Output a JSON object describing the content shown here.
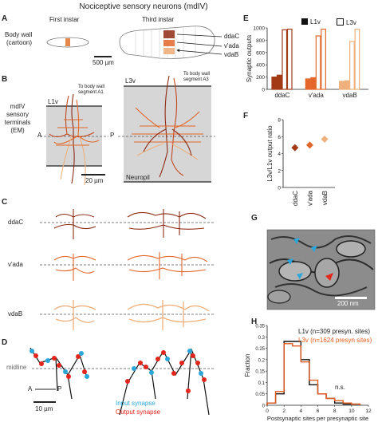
{
  "title": "Nociceptive sensory neurons (mdIV)",
  "panelA": {
    "label": "A",
    "first_instar": "First instar",
    "third_instar": "Third instar",
    "row_label_1": "Body wall",
    "row_label_2": "(cartoon)",
    "scale": "500 µm",
    "neuron_labels": [
      "ddaC",
      "v'ada",
      "vdaB"
    ]
  },
  "panelB": {
    "label": "B",
    "row_label_lines": [
      "mdIV",
      "sensory",
      "terminals",
      "(EM)"
    ],
    "l1v": "L1v",
    "l3v": "L3v",
    "to_bw_a1_1": "To body wall",
    "to_bw_a1_2": "segment A1",
    "to_bw_a3_1": "To body wall",
    "to_bw_a3_2": "segment A3",
    "axis_a": "A",
    "axis_p": "P",
    "scale": "20 µm",
    "neuropil": "Neuropil"
  },
  "panelC": {
    "label": "C",
    "rows": [
      "ddaC",
      "v'ada",
      "vdaB"
    ]
  },
  "panelD": {
    "label": "D",
    "midline": "midline",
    "axis_a": "A",
    "axis_p": "P",
    "scale": "10 µm",
    "input_synapse": "Input synapse",
    "output_synapse": "Output synapse"
  },
  "panelE": {
    "label": "E",
    "legend_l1v": "L1v",
    "legend_l3v": "L3v",
    "chart_data": {
      "type": "bar",
      "ylabel": "Synaptic outputs",
      "ylim": [
        0,
        1000
      ],
      "yticks": [
        0,
        200,
        400,
        600,
        800,
        1000
      ],
      "categories": [
        "ddaC",
        "v'ada",
        "vdaB"
      ],
      "series": [
        {
          "name": "L1v",
          "values": [
            [
              200,
              230
            ],
            [
              170,
              190
            ],
            [
              130,
              140
            ]
          ]
        },
        {
          "name": "L3v",
          "values": [
            [
              970,
              980
            ],
            [
              870,
              980
            ],
            [
              780,
              980
            ]
          ]
        }
      ],
      "colors": {
        "ddaC": "#a23a16",
        "v'ada": "#e3672a",
        "vdaB": "#eeb07d"
      }
    }
  },
  "panelF": {
    "label": "F",
    "chart_data": {
      "type": "scatter",
      "ylabel": "L3v/L1v output ratio",
      "ylim": [
        0,
        8
      ],
      "yticks": [
        0,
        2,
        4,
        6,
        8
      ],
      "categories": [
        "ddaC",
        "v'ada",
        "vdaB"
      ],
      "values": [
        4.7,
        5.0,
        5.7
      ],
      "colors": [
        "#a23a16",
        "#e3672a",
        "#eeb07d"
      ]
    }
  },
  "panelG": {
    "label": "G",
    "scale": "200 nm"
  },
  "panelH": {
    "label": "H",
    "legend_l1v": "L1v (n=309 presyn. sites)",
    "legend_l3v": "L3v (n=1624 presyn sites)",
    "ns": "n.s.",
    "chart_data": {
      "type": "bar",
      "xlabel": "Postsynaptic sites per presynaptic site",
      "ylabel": "Fraction",
      "xlim": [
        0,
        12
      ],
      "ylim": [
        0,
        0.35
      ],
      "xticks": [
        0,
        2,
        4,
        6,
        8,
        10,
        12
      ],
      "yticks": [
        0,
        0.05,
        0.1,
        0.15,
        0.2,
        0.25,
        0.3,
        0.35
      ],
      "bin_edges": [
        0,
        1,
        2,
        3,
        4,
        5,
        6,
        7,
        8,
        9,
        10,
        11
      ],
      "series": [
        {
          "name": "L1v",
          "values": [
            0.01,
            0.05,
            0.28,
            0.28,
            0.2,
            0.09,
            0.05,
            0.03,
            0.01,
            0.005,
            0.005
          ]
        },
        {
          "name": "L3v",
          "values": [
            0.01,
            0.06,
            0.27,
            0.26,
            0.19,
            0.11,
            0.05,
            0.03,
            0.02,
            0.01,
            0.005
          ]
        }
      ],
      "colors": {
        "L1v": "#111111",
        "L3v": "#e35b1d"
      }
    }
  }
}
